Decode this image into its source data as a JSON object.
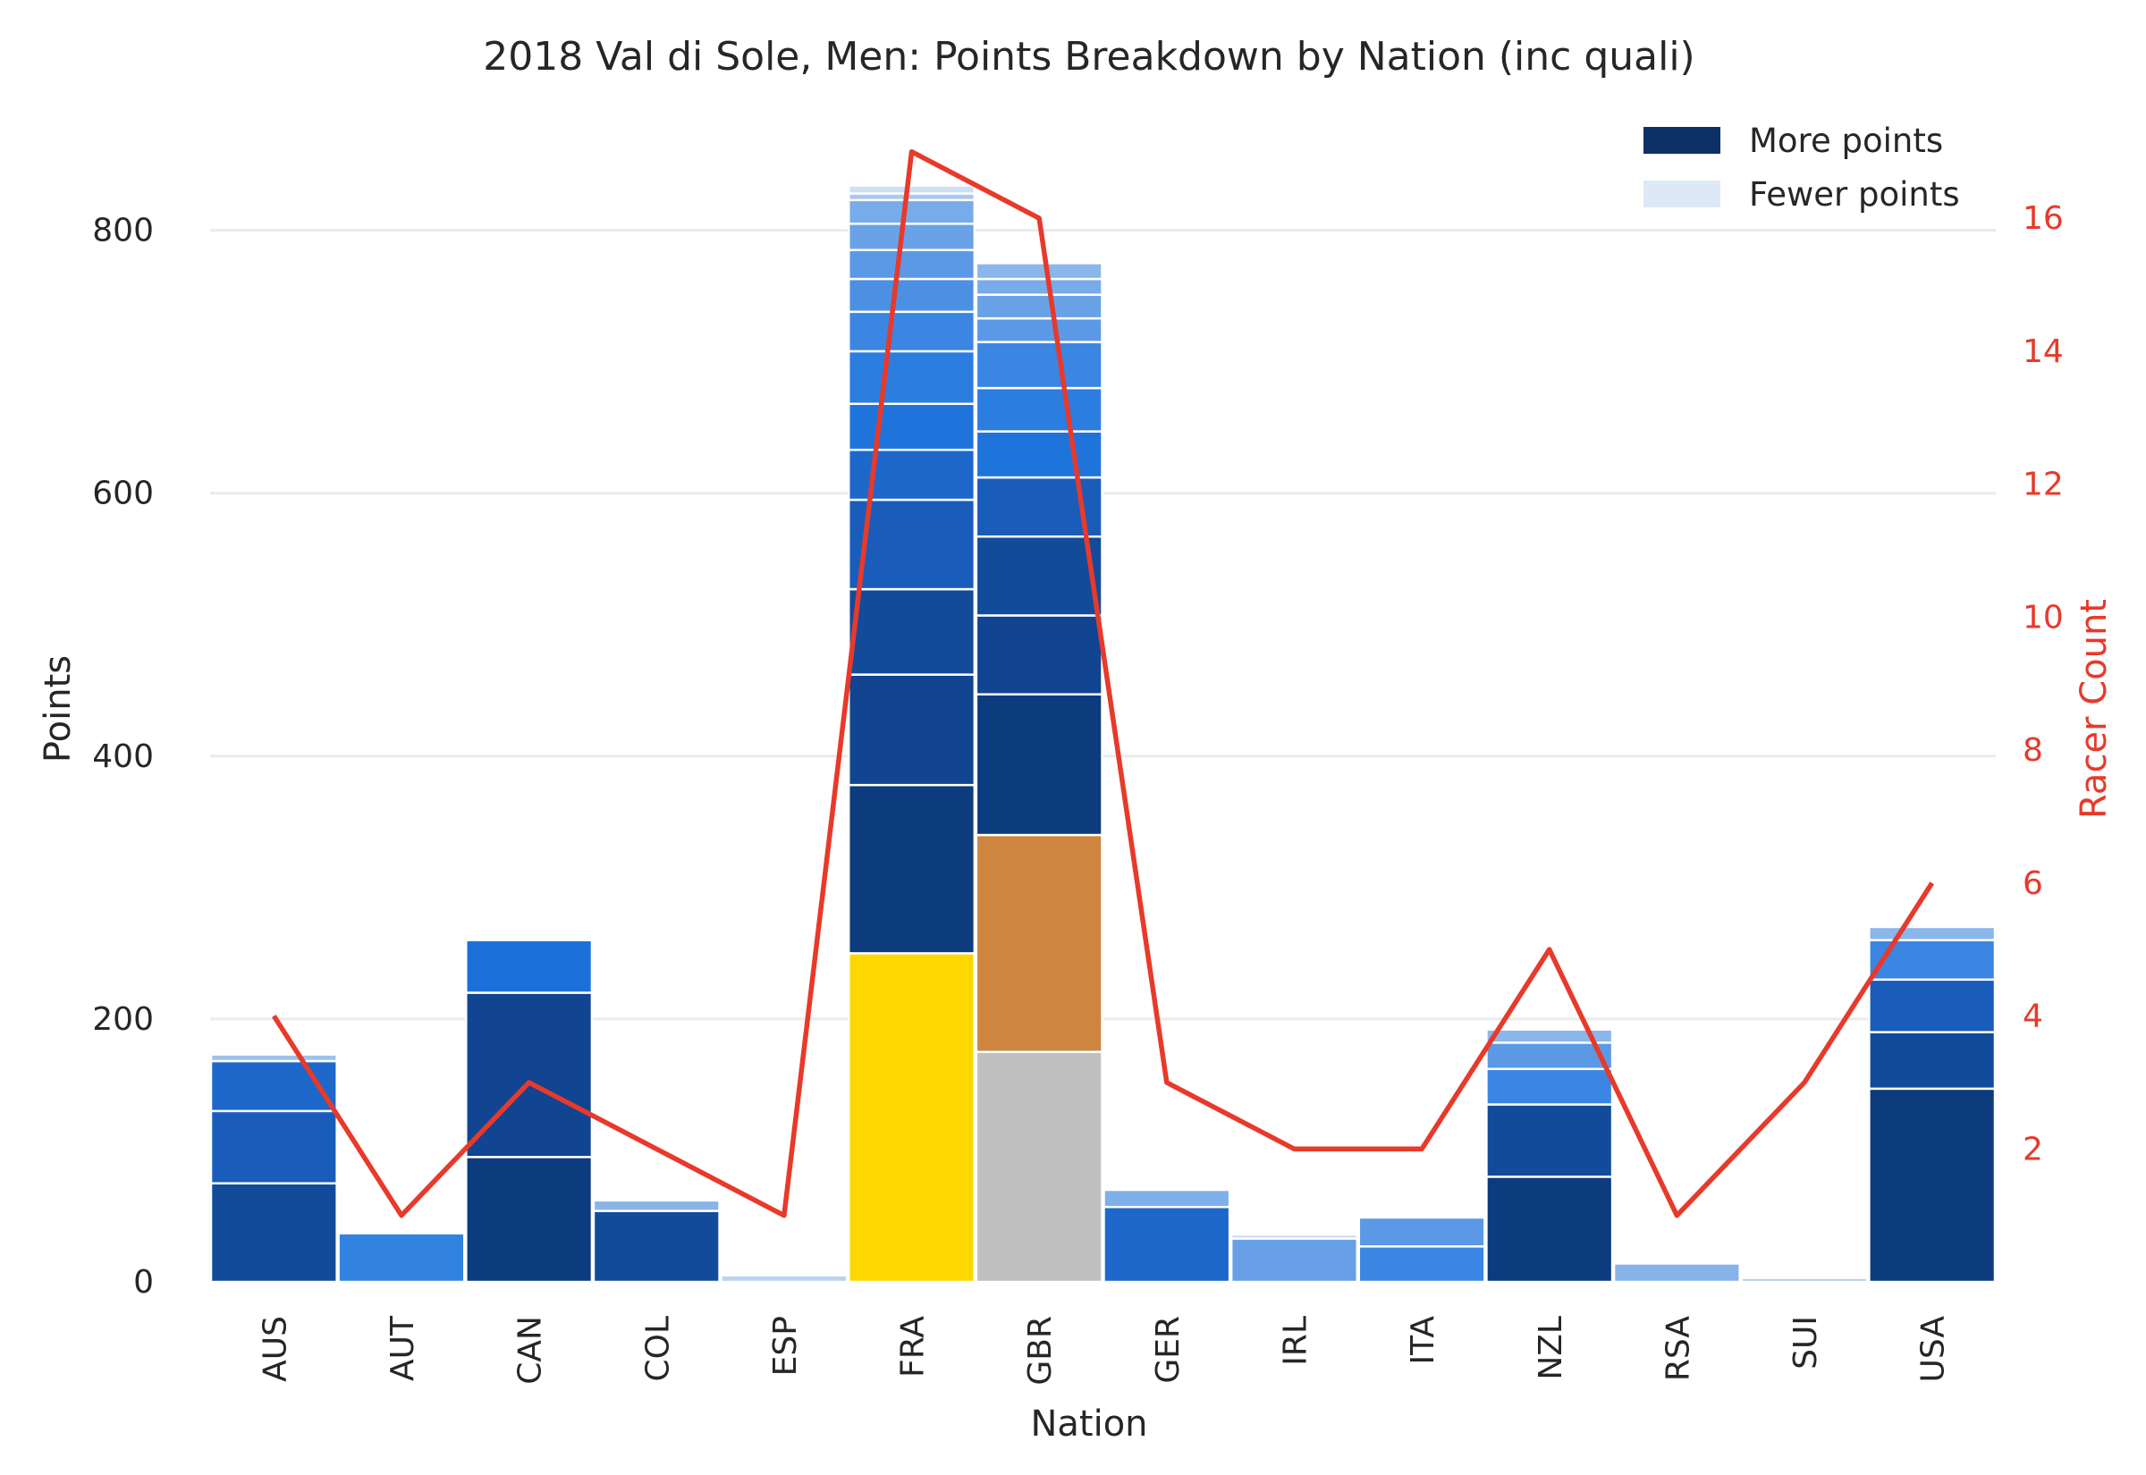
{
  "chart_data": {
    "type": "bar",
    "title": "2018 Val di Sole, Men: Points Breakdown by Nation (inc quali)",
    "xlabel": "Nation",
    "ylabel": "Points",
    "y2label": "Racer Count",
    "ylim": [
      0,
      880
    ],
    "y2lim": [
      0,
      17.4
    ],
    "yticks": [
      "0",
      "200",
      "400",
      "600",
      "800"
    ],
    "y2ticks": [
      "2",
      "4",
      "6",
      "8",
      "10",
      "12",
      "14",
      "16"
    ],
    "categories": [
      "AUS",
      "AUT",
      "CAN",
      "COL",
      "ESP",
      "FRA",
      "GBR",
      "GER",
      "IRL",
      "ITA",
      "NZL",
      "RSA",
      "SUI",
      "USA"
    ],
    "stacks": [
      [
        {
          "v": 75,
          "c": "#134b9b"
        },
        {
          "v": 55,
          "c": "#1a5cba"
        },
        {
          "v": 38,
          "c": "#1d68ca"
        },
        {
          "v": 5,
          "c": "#9dc1ea"
        }
      ],
      [
        {
          "v": 37,
          "c": "#3282e0"
        }
      ],
      [
        {
          "v": 95,
          "c": "#0c3b7e"
        },
        {
          "v": 125,
          "c": "#114491"
        },
        {
          "v": 40,
          "c": "#1c6fd8"
        }
      ],
      [
        {
          "v": 54,
          "c": "#134b9b"
        },
        {
          "v": 8,
          "c": "#89b4e6"
        }
      ],
      [
        {
          "v": 5,
          "c": "#b9d2f0"
        }
      ],
      [
        {
          "v": 250,
          "c": "#ffd700"
        },
        {
          "v": 128,
          "c": "#0c3b7e"
        },
        {
          "v": 84,
          "c": "#114491"
        },
        {
          "v": 65,
          "c": "#134b9b"
        },
        {
          "v": 68,
          "c": "#1a5cba"
        },
        {
          "v": 38,
          "c": "#1d68ca"
        },
        {
          "v": 35,
          "c": "#1f74dc"
        },
        {
          "v": 40,
          "c": "#2c7de0"
        },
        {
          "v": 30,
          "c": "#3a86e2"
        },
        {
          "v": 25,
          "c": "#4c90e4"
        },
        {
          "v": 22,
          "c": "#5b99e6"
        },
        {
          "v": 20,
          "c": "#6aa2e8"
        },
        {
          "v": 18,
          "c": "#78abe9"
        },
        {
          "v": 5,
          "c": "#a8c8ee"
        },
        {
          "v": 6,
          "c": "#cfe0f5"
        }
      ],
      [
        {
          "v": 175,
          "c": "#c0c0c0"
        },
        {
          "v": 165,
          "c": "#cd853f"
        },
        {
          "v": 107,
          "c": "#0c3b7e"
        },
        {
          "v": 60,
          "c": "#114491"
        },
        {
          "v": 60,
          "c": "#134b9b"
        },
        {
          "v": 45,
          "c": "#1a5cba"
        },
        {
          "v": 35,
          "c": "#1f74dc"
        },
        {
          "v": 33,
          "c": "#2c7de0"
        },
        {
          "v": 35,
          "c": "#3a86e2"
        },
        {
          "v": 18,
          "c": "#5b99e6"
        },
        {
          "v": 18,
          "c": "#6aa2e8"
        },
        {
          "v": 12,
          "c": "#78abe9"
        },
        {
          "v": 12,
          "c": "#8ab6ea"
        }
      ],
      [
        {
          "v": 57,
          "c": "#1d68ca"
        },
        {
          "v": 13,
          "c": "#7eb0e9"
        }
      ],
      [
        {
          "v": 33,
          "c": "#67a0e6"
        },
        {
          "v": 3,
          "c": "#c3d9f2"
        }
      ],
      [
        {
          "v": 27,
          "c": "#3a86e2"
        },
        {
          "v": 22,
          "c": "#5b99e6"
        }
      ],
      [
        {
          "v": 80,
          "c": "#0c3b7e"
        },
        {
          "v": 55,
          "c": "#134b9b"
        },
        {
          "v": 27,
          "c": "#3a86e2"
        },
        {
          "v": 20,
          "c": "#5b99e6"
        },
        {
          "v": 10,
          "c": "#8ab6ea"
        }
      ],
      [
        {
          "v": 14,
          "c": "#86b3e8"
        }
      ],
      [
        {
          "v": 3,
          "c": "#b3cfef"
        }
      ],
      [
        {
          "v": 147,
          "c": "#0c3b7e"
        },
        {
          "v": 43,
          "c": "#134b9b"
        },
        {
          "v": 40,
          "c": "#1a5cba"
        },
        {
          "v": 30,
          "c": "#3a86e2"
        },
        {
          "v": 10,
          "c": "#8ab6ea"
        }
      ]
    ],
    "racer_count": [
      4,
      1,
      3,
      2,
      1,
      17,
      16,
      3,
      2,
      2,
      5,
      1,
      3,
      6
    ],
    "line_color": "#e8392a",
    "grid": true,
    "legend": {
      "position": "top-right",
      "items": [
        {
          "label": "More points",
          "color": "#0c3166"
        },
        {
          "label": "Fewer points",
          "color": "#dde9f6"
        }
      ]
    }
  }
}
